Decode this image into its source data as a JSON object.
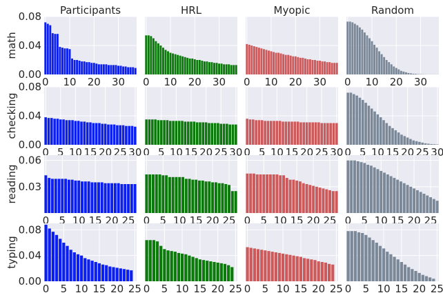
{
  "columns": [
    "Participants",
    "HRL",
    "Myopic",
    "Random"
  ],
  "rows": [
    "math",
    "checking",
    "reading",
    "typing"
  ],
  "colors": {
    "Participants": "#0a1ff0",
    "HRL": "#0b7a0b",
    "Myopic": "#cd5a5a",
    "Random": "#7a8898"
  },
  "grid": true,
  "background": "#eaeaf2",
  "chart_data": [
    {
      "type": "bar",
      "row": "math",
      "column": "Participants",
      "ylim": [
        0,
        0.08
      ],
      "yticks": [
        "0.00",
        "0.04",
        "0.08"
      ],
      "xlim": [
        -0.5,
        37.5
      ],
      "xticks": [
        0,
        10,
        20,
        30
      ],
      "values": [
        0.072,
        0.07,
        0.068,
        0.057,
        0.056,
        0.056,
        0.038,
        0.037,
        0.036,
        0.036,
        0.035,
        0.022,
        0.02,
        0.02,
        0.019,
        0.018,
        0.018,
        0.017,
        0.017,
        0.016,
        0.016,
        0.015,
        0.014,
        0.014,
        0.014,
        0.014,
        0.013,
        0.013,
        0.013,
        0.013,
        0.012,
        0.012,
        0.011,
        0.011,
        0.01,
        0.01,
        0.01,
        0.009
      ]
    },
    {
      "type": "bar",
      "row": "math",
      "column": "HRL",
      "ylim": [
        0,
        0.08
      ],
      "yticks": [],
      "xlim": [
        -0.5,
        37.5
      ],
      "xticks": [
        0,
        10,
        20,
        30
      ],
      "values": [
        0.054,
        0.054,
        0.053,
        0.05,
        0.046,
        0.043,
        0.04,
        0.037,
        0.034,
        0.032,
        0.03,
        0.029,
        0.028,
        0.027,
        0.026,
        0.025,
        0.024,
        0.023,
        0.022,
        0.022,
        0.021,
        0.02,
        0.02,
        0.019,
        0.018,
        0.018,
        0.017,
        0.017,
        0.016,
        0.016,
        0.015,
        0.015,
        0.014,
        0.014,
        0.014,
        0.013,
        0.013,
        0.013
      ]
    },
    {
      "type": "bar",
      "row": "math",
      "column": "Myopic",
      "ylim": [
        0,
        0.08
      ],
      "yticks": [],
      "xlim": [
        -0.5,
        37.5
      ],
      "xticks": [
        0,
        10,
        20,
        30
      ],
      "values": [
        0.042,
        0.041,
        0.04,
        0.039,
        0.038,
        0.037,
        0.036,
        0.035,
        0.034,
        0.033,
        0.032,
        0.031,
        0.03,
        0.03,
        0.029,
        0.028,
        0.027,
        0.027,
        0.026,
        0.025,
        0.025,
        0.024,
        0.023,
        0.023,
        0.022,
        0.021,
        0.021,
        0.02,
        0.02,
        0.019,
        0.019,
        0.018,
        0.018,
        0.017,
        0.017,
        0.016,
        0.016,
        0.016
      ]
    },
    {
      "type": "bar",
      "row": "math",
      "column": "Random",
      "ylim": [
        0,
        0.08
      ],
      "yticks": [],
      "xlim": [
        -0.5,
        37.5
      ],
      "xticks": [
        0,
        10,
        20,
        30
      ],
      "values": [
        0.073,
        0.073,
        0.072,
        0.07,
        0.068,
        0.065,
        0.062,
        0.058,
        0.054,
        0.05,
        0.046,
        0.041,
        0.037,
        0.032,
        0.028,
        0.024,
        0.02,
        0.017,
        0.014,
        0.011,
        0.009,
        0.007,
        0.005,
        0.004,
        0.003,
        0.002,
        0.0015,
        0.001,
        0.0008,
        0.0005,
        0.0004,
        0.0003,
        0.0002,
        0.0001,
        0.0001,
        0.0001,
        0.0001,
        0.0001
      ]
    },
    {
      "type": "bar",
      "row": "checking",
      "column": "Participants",
      "ylim": [
        0,
        0.08
      ],
      "yticks": [
        "0.00",
        "0.04",
        "0.08"
      ],
      "xlim": [
        -0.5,
        30.5
      ],
      "xticks": [
        0,
        5,
        10,
        15,
        20,
        25,
        30
      ],
      "values": [
        0.038,
        0.037,
        0.037,
        0.036,
        0.036,
        0.035,
        0.035,
        0.034,
        0.034,
        0.034,
        0.033,
        0.033,
        0.032,
        0.032,
        0.031,
        0.031,
        0.03,
        0.03,
        0.03,
        0.029,
        0.029,
        0.028,
        0.028,
        0.028,
        0.027,
        0.027,
        0.027,
        0.026,
        0.026,
        0.026,
        0.025
      ]
    },
    {
      "type": "bar",
      "row": "checking",
      "column": "HRL",
      "ylim": [
        0,
        0.08
      ],
      "yticks": [],
      "xlim": [
        -0.5,
        30.5
      ],
      "xticks": [
        0,
        5,
        10,
        15,
        20,
        25,
        30
      ],
      "values": [
        0.035,
        0.035,
        0.035,
        0.035,
        0.034,
        0.034,
        0.034,
        0.034,
        0.033,
        0.033,
        0.033,
        0.033,
        0.033,
        0.032,
        0.032,
        0.032,
        0.032,
        0.031,
        0.031,
        0.031,
        0.031,
        0.03,
        0.03,
        0.03,
        0.03,
        0.029,
        0.029,
        0.029,
        0.028,
        0.028,
        0.028
      ]
    },
    {
      "type": "bar",
      "row": "checking",
      "column": "Myopic",
      "ylim": [
        0,
        0.08
      ],
      "yticks": [],
      "xlim": [
        -0.5,
        30.5
      ],
      "xticks": [
        0,
        5,
        10,
        15,
        20,
        25,
        30
      ],
      "values": [
        0.036,
        0.035,
        0.035,
        0.034,
        0.034,
        0.034,
        0.033,
        0.033,
        0.033,
        0.033,
        0.033,
        0.033,
        0.032,
        0.032,
        0.032,
        0.032,
        0.032,
        0.032,
        0.031,
        0.031,
        0.031,
        0.031,
        0.031,
        0.031,
        0.031,
        0.03,
        0.03,
        0.03,
        0.03,
        0.03,
        0.03
      ]
    },
    {
      "type": "bar",
      "row": "checking",
      "column": "Random",
      "ylim": [
        0,
        0.08
      ],
      "yticks": [],
      "xlim": [
        -0.5,
        30.5
      ],
      "xticks": [
        0,
        5,
        10,
        15,
        20,
        25,
        30
      ],
      "values": [
        0.072,
        0.072,
        0.07,
        0.068,
        0.065,
        0.062,
        0.058,
        0.054,
        0.05,
        0.046,
        0.042,
        0.038,
        0.034,
        0.03,
        0.026,
        0.023,
        0.02,
        0.017,
        0.014,
        0.012,
        0.01,
        0.008,
        0.006,
        0.005,
        0.004,
        0.003,
        0.002,
        0.0015,
        0.001,
        0.0008,
        0.0005
      ]
    },
    {
      "type": "bar",
      "row": "reading",
      "column": "Participants",
      "ylim": [
        0,
        0.066
      ],
      "yticks": [
        "0.03",
        "0.06"
      ],
      "xlim": [
        -0.5,
        27.5
      ],
      "xticks": [
        0,
        5,
        10,
        15,
        20,
        25
      ],
      "values": [
        0.043,
        0.04,
        0.039,
        0.039,
        0.039,
        0.039,
        0.039,
        0.038,
        0.038,
        0.037,
        0.037,
        0.036,
        0.036,
        0.036,
        0.035,
        0.035,
        0.035,
        0.035,
        0.034,
        0.034,
        0.034,
        0.034,
        0.034,
        0.033,
        0.033,
        0.033,
        0.033,
        0.033
      ]
    },
    {
      "type": "bar",
      "row": "reading",
      "column": "HRL",
      "ylim": [
        0,
        0.066
      ],
      "yticks": [],
      "xlim": [
        -0.5,
        27.5
      ],
      "xticks": [
        0,
        5,
        10,
        15,
        20,
        25
      ],
      "values": [
        0.044,
        0.044,
        0.044,
        0.044,
        0.044,
        0.043,
        0.043,
        0.041,
        0.041,
        0.041,
        0.041,
        0.041,
        0.039,
        0.039,
        0.038,
        0.038,
        0.037,
        0.037,
        0.036,
        0.036,
        0.035,
        0.035,
        0.034,
        0.034,
        0.033,
        0.032,
        0.025,
        0.025
      ]
    },
    {
      "type": "bar",
      "row": "reading",
      "column": "Myopic",
      "ylim": [
        0,
        0.066
      ],
      "yticks": [],
      "xlim": [
        -0.5,
        27.5
      ],
      "xticks": [
        0,
        5,
        10,
        15,
        20,
        25
      ],
      "values": [
        0.045,
        0.045,
        0.045,
        0.044,
        0.044,
        0.044,
        0.044,
        0.044,
        0.044,
        0.044,
        0.043,
        0.043,
        0.04,
        0.038,
        0.038,
        0.037,
        0.036,
        0.034,
        0.033,
        0.032,
        0.031,
        0.03,
        0.029,
        0.028,
        0.027,
        0.026,
        0.025,
        0.025
      ]
    },
    {
      "type": "bar",
      "row": "reading",
      "column": "Random",
      "ylim": [
        0,
        0.066
      ],
      "yticks": [],
      "xlim": [
        -0.5,
        27.5
      ],
      "xticks": [
        0,
        5,
        10,
        15,
        20,
        25
      ],
      "values": [
        0.06,
        0.06,
        0.06,
        0.059,
        0.058,
        0.057,
        0.055,
        0.054,
        0.052,
        0.05,
        0.048,
        0.046,
        0.044,
        0.042,
        0.04,
        0.038,
        0.036,
        0.034,
        0.032,
        0.03,
        0.028,
        0.026,
        0.024,
        0.022,
        0.02,
        0.018,
        0.016,
        0.014
      ]
    },
    {
      "type": "bar",
      "row": "typing",
      "column": "Participants",
      "ylim": [
        0,
        0.09
      ],
      "yticks": [
        "0.00",
        "0.04",
        "0.08"
      ],
      "xlim": [
        -0.5,
        25.5
      ],
      "xticks": [
        0,
        5,
        10,
        15,
        20,
        25
      ],
      "values": [
        0.088,
        0.082,
        0.077,
        0.072,
        0.066,
        0.06,
        0.055,
        0.049,
        0.045,
        0.042,
        0.04,
        0.036,
        0.034,
        0.032,
        0.03,
        0.028,
        0.026,
        0.025,
        0.023,
        0.022,
        0.021,
        0.02,
        0.019,
        0.018,
        0.017
      ]
    },
    {
      "type": "bar",
      "row": "typing",
      "column": "HRL",
      "ylim": [
        0,
        0.09
      ],
      "yticks": [],
      "xlim": [
        -0.5,
        25.5
      ],
      "xticks": [
        0,
        5,
        10,
        15,
        20,
        25
      ],
      "values": [
        0.064,
        0.064,
        0.064,
        0.062,
        0.055,
        0.05,
        0.048,
        0.047,
        0.046,
        0.044,
        0.043,
        0.042,
        0.04,
        0.038,
        0.036,
        0.034,
        0.033,
        0.032,
        0.031,
        0.03,
        0.029,
        0.028,
        0.027,
        0.025,
        0.022
      ]
    },
    {
      "type": "bar",
      "row": "typing",
      "column": "Myopic",
      "ylim": [
        0,
        0.09
      ],
      "yticks": [],
      "xlim": [
        -0.5,
        25.5
      ],
      "xticks": [
        0,
        5,
        10,
        15,
        20,
        25
      ],
      "values": [
        0.053,
        0.052,
        0.051,
        0.05,
        0.049,
        0.048,
        0.047,
        0.046,
        0.045,
        0.044,
        0.043,
        0.042,
        0.041,
        0.04,
        0.039,
        0.038,
        0.036,
        0.035,
        0.034,
        0.033,
        0.031,
        0.03,
        0.029,
        0.027,
        0.026
      ]
    },
    {
      "type": "bar",
      "row": "typing",
      "column": "Random",
      "ylim": [
        0,
        0.09
      ],
      "yticks": [],
      "xlim": [
        -0.5,
        25.5
      ],
      "xticks": [
        0,
        5,
        10,
        15,
        20,
        25
      ],
      "values": [
        0.078,
        0.078,
        0.078,
        0.076,
        0.075,
        0.072,
        0.068,
        0.064,
        0.06,
        0.055,
        0.051,
        0.046,
        0.042,
        0.038,
        0.034,
        0.03,
        0.026,
        0.022,
        0.019,
        0.016,
        0.013,
        0.01,
        0.008,
        0.006,
        0.004
      ]
    }
  ]
}
